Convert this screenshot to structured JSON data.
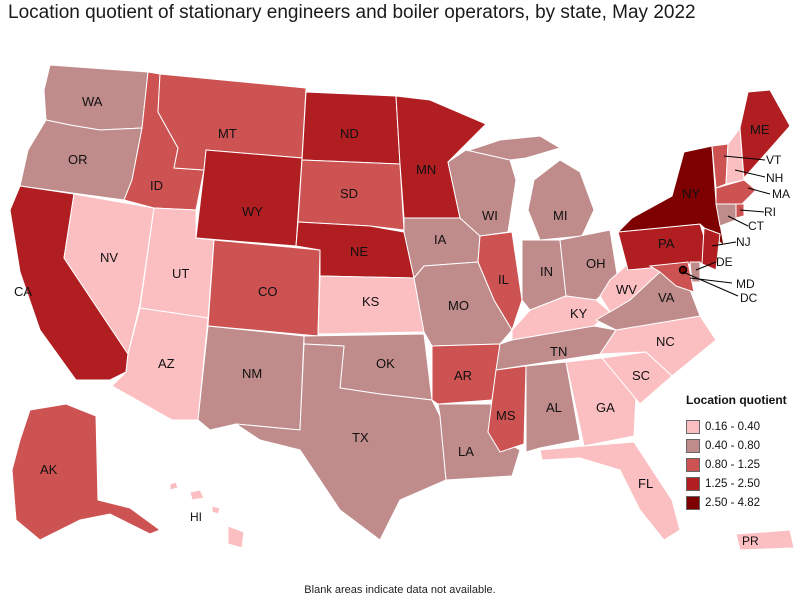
{
  "title": "Location quotient of stationary engineers and boiler operators, by state, May 2022",
  "legend": {
    "title": "Location quotient",
    "items": [
      {
        "label": "0.16 - 0.40",
        "color": "#fbbfc2"
      },
      {
        "label": "0.40 - 0.80",
        "color": "#bf8b8b"
      },
      {
        "label": "0.80 - 1.25",
        "color": "#cd5252"
      },
      {
        "label": "1.25 - 2.50",
        "color": "#b01e22"
      },
      {
        "label": "2.50 - 4.82",
        "color": "#7e0000"
      }
    ]
  },
  "footnote": "Blank areas indicate data not available.",
  "states": {
    "WA": "0.40 - 0.80",
    "OR": "0.40 - 0.80",
    "CA": "1.25 - 2.50",
    "NV": "0.16 - 0.40",
    "ID": "0.80 - 1.25",
    "MT": "0.80 - 1.25",
    "WY": "1.25 - 2.50",
    "UT": "0.16 - 0.40",
    "AZ": "0.16 - 0.40",
    "CO": "0.80 - 1.25",
    "NM": "0.40 - 0.80",
    "ND": "1.25 - 2.50",
    "SD": "0.80 - 1.25",
    "NE": "1.25 - 2.50",
    "KS": "0.16 - 0.40",
    "OK": "0.40 - 0.80",
    "TX": "0.40 - 0.80",
    "MN": "1.25 - 2.50",
    "IA": "0.40 - 0.80",
    "MO": "0.40 - 0.80",
    "AR": "0.80 - 1.25",
    "LA": "0.40 - 0.80",
    "WI": "0.40 - 0.80",
    "IL": "0.80 - 1.25",
    "MI": "0.40 - 0.80",
    "IN": "0.40 - 0.80",
    "OH": "0.40 - 0.80",
    "KY": "0.16 - 0.40",
    "TN": "0.40 - 0.80",
    "MS": "0.80 - 1.25",
    "AL": "0.40 - 0.80",
    "GA": "0.16 - 0.40",
    "FL": "0.16 - 0.40",
    "SC": "0.16 - 0.40",
    "NC": "0.16 - 0.40",
    "VA": "0.40 - 0.80",
    "WV": "0.16 - 0.40",
    "PA": "1.25 - 2.50",
    "NY": "2.50 - 4.82",
    "VT": "0.80 - 1.25",
    "NH": "0.16 - 0.40",
    "ME": "1.25 - 2.50",
    "MA": "0.80 - 1.25",
    "RI": "0.80 - 1.25",
    "CT": "0.40 - 0.80",
    "NJ": "1.25 - 2.50",
    "DE": "0.40 - 0.80",
    "MD": "0.80 - 1.25",
    "DC": "2.50 - 4.82",
    "AK": "0.80 - 1.25",
    "HI": "0.16 - 0.40",
    "PR": "0.16 - 0.40"
  }
}
